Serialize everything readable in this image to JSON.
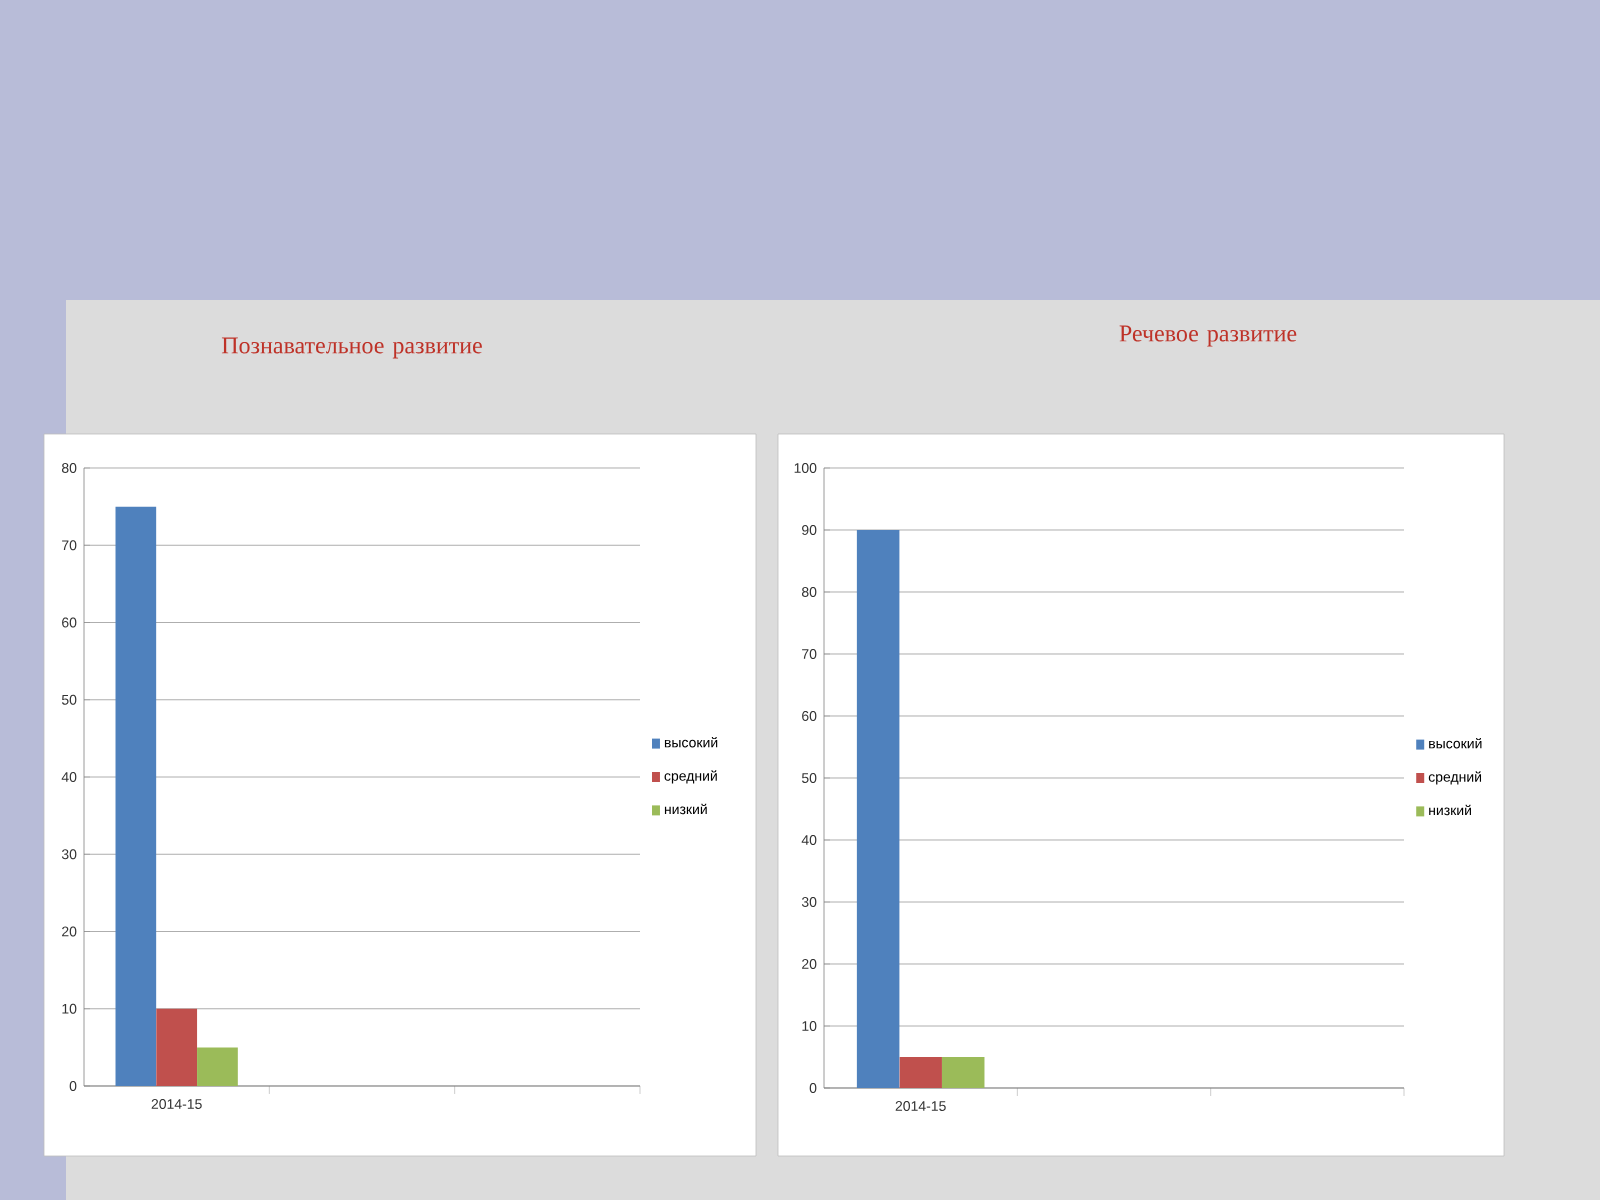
{
  "chart_data": [
    {
      "type": "bar",
      "title": "Познавательное развитие",
      "categories": [
        "2014-15",
        null,
        null
      ],
      "series": [
        {
          "name": "высокий",
          "color": "#4f81bd",
          "values": [
            75,
            null,
            null
          ]
        },
        {
          "name": "средний",
          "color": "#c0504d",
          "values": [
            10,
            null,
            null
          ]
        },
        {
          "name": "низкий",
          "color": "#9bbb59",
          "values": [
            5,
            null,
            null
          ]
        }
      ],
      "ylim": [
        0,
        80
      ],
      "yticks": [
        0,
        10,
        20,
        30,
        40,
        50,
        60,
        70,
        80
      ],
      "grid": "y",
      "legend": "right"
    },
    {
      "type": "bar",
      "title": "Речевое развитие",
      "categories": [
        "2014-15",
        null,
        null
      ],
      "series": [
        {
          "name": "высокий",
          "color": "#4f81bd",
          "values": [
            90,
            null,
            null
          ]
        },
        {
          "name": "средний",
          "color": "#c0504d",
          "values": [
            5,
            null,
            null
          ]
        },
        {
          "name": "низкий",
          "color": "#9bbb59",
          "values": [
            5,
            null,
            null
          ]
        }
      ],
      "ylim": [
        0,
        100
      ],
      "yticks": [
        0,
        10,
        20,
        30,
        40,
        50,
        60,
        70,
        80,
        90,
        100
      ],
      "grid": "y",
      "legend": "right"
    }
  ]
}
